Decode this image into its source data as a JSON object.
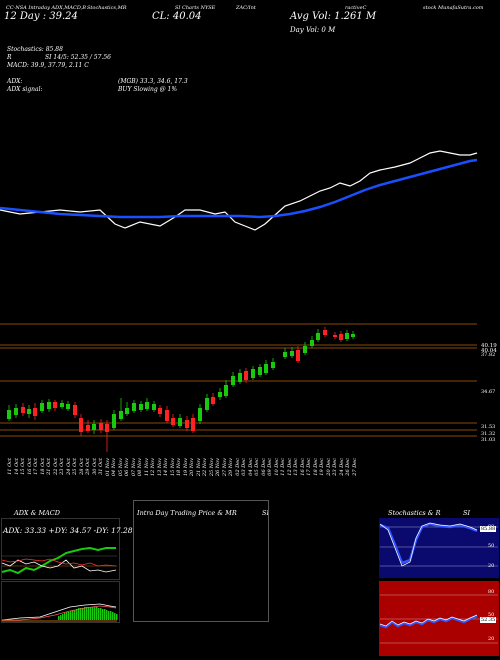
{
  "header": {
    "left_line1": "CC-NSA Intraday ADX,MACD,B",
    "left_line2": "Stochastics,MR",
    "left_line3": "SI Charts NYSE",
    "left_line4": "ZAC/Int",
    "right_tag1": "ractiveC",
    "right_tag2": "stock MunafaSutra.com",
    "day_line": "12 Day : 39.24",
    "cl_line": "CL: 40.04",
    "avg_vol": "Avg Vol: 1.261 M",
    "day_vol": "Day Vol: 0  M"
  },
  "indicators": {
    "stoch": "Stochastics: 85.88",
    "rsi": "SI 14/5: 52.35 / 57.56",
    "macd": "MACD: 39.9, 37.79, 2.11 C",
    "adx_label": "ADX:",
    "adx_val": "(MGB) 33.3,  34.6,  17.3",
    "adx_signal_label": "ADX  signal:",
    "adx_signal_val": "BUY Slowing @ 1%"
  },
  "price_axis": [
    "40.19",
    "40.04",
    "37.82",
    "34.67",
    "31.53",
    "31.32",
    "31.03"
  ],
  "date_labels": [
    "11 Oct",
    "14 Oct",
    "15 Oct",
    "16 Oct",
    "17 Oct",
    "18 Oct",
    "21 Oct",
    "22 Oct",
    "23 Oct",
    "24 Oct",
    "25 Oct",
    "28 Oct",
    "29 Oct",
    "30 Oct",
    "31 Oct",
    "01 Nov",
    "04 Nov",
    "05 Nov",
    "06 Nov",
    "07 Nov",
    "08 Nov",
    "11 Nov",
    "12 Nov",
    "13 Nov",
    "14 Nov",
    "15 Nov",
    "18 Nov",
    "19 Nov",
    "20 Nov",
    "21 Nov",
    "22 Nov",
    "25 Nov",
    "26 Nov",
    "27 Nov",
    "29 Nov",
    "02 Dec",
    "03 Dec",
    "04 Dec",
    "05 Dec",
    "06 Dec",
    "09 Dec",
    "10 Dec",
    "11 Dec",
    "12 Dec",
    "13 Dec",
    "16 Dec",
    "17 Dec",
    "18 Dec",
    "19 Dec",
    "20 Dec",
    "23 Dec",
    "24 Dec",
    "26 Dec",
    "27 Dec"
  ],
  "panels": {
    "adx_title": "ADX  & MACD",
    "adx_values": "ADX: 33.33  +DY: 34.57  -DY: 17.28",
    "intraday_title": "Intra  Day Trading Price  & MR",
    "intraday_si": "SI",
    "stoch_title": "Stochastics & R",
    "stoch_si": "SI",
    "stoch_levels": [
      "80",
      "50",
      "20"
    ],
    "rsi_levels": [
      "80",
      "50",
      "20"
    ],
    "stoch_value": "85.88",
    "rsi_value": "52.35"
  },
  "colors": {
    "up": "#19c80f",
    "down": "#ff2222",
    "ema": "#1a4fff",
    "orange_line": "#b45f06",
    "panel_blue": "#0a0a6e",
    "panel_red": "#aa0000"
  }
}
